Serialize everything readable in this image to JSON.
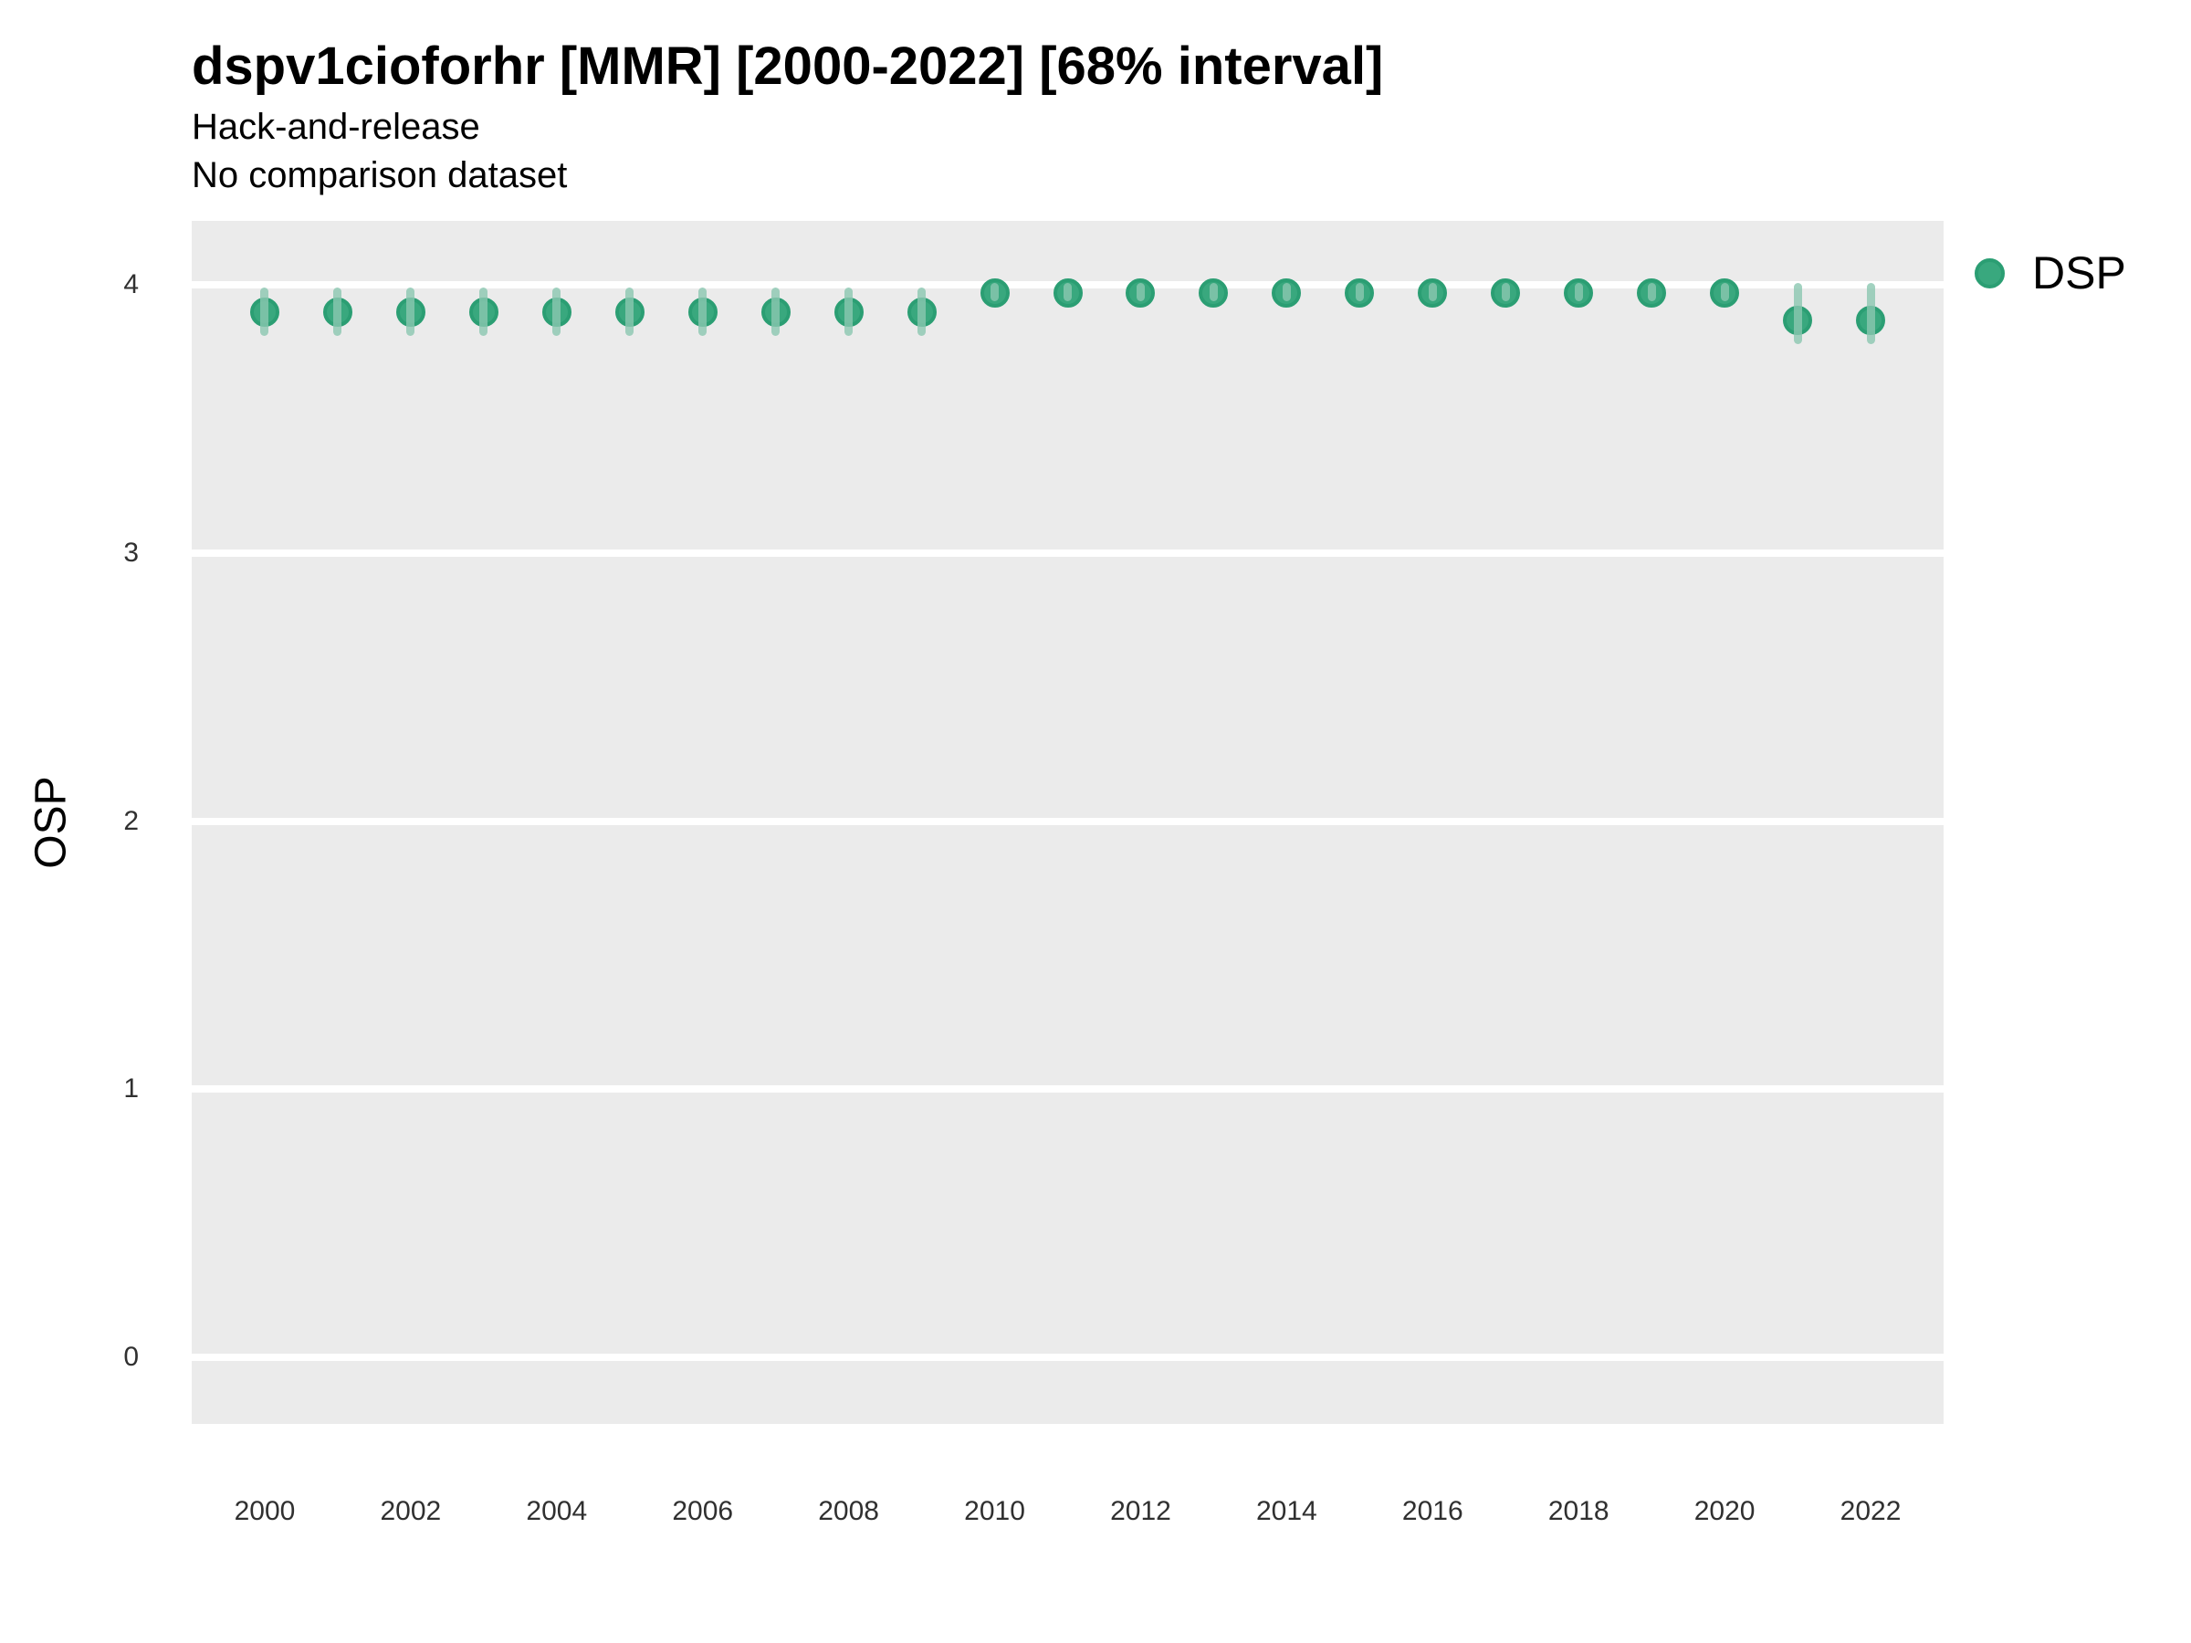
{
  "title": "dspv1cioforhr [MMR] [2000-2022] [68% interval]",
  "subtitle": {
    "line1": "Hack-and-release",
    "line2": "No comparison dataset"
  },
  "y_axis": {
    "label": "OSP",
    "ticks": [
      0,
      1,
      2,
      3,
      4
    ]
  },
  "x_axis": {
    "ticks": [
      2000,
      2002,
      2004,
      2006,
      2008,
      2010,
      2012,
      2014,
      2016,
      2018,
      2020,
      2022
    ]
  },
  "legend": {
    "items": [
      {
        "label": "DSP",
        "color": "#2BA578"
      }
    ]
  },
  "colors": {
    "panel_bg": "#EBEBEB",
    "gridline": "#FFFFFF",
    "point_fill": "#39A87E",
    "point_border": "#2B9E73",
    "interval_bar": "rgba(139,199,176,0.8)",
    "title_text": "#000000",
    "tick_text": "#303030"
  },
  "chart_data": {
    "type": "scatter",
    "title": "dspv1cioforhr [MMR] [2000-2022] [68% interval]",
    "subtitle": [
      "Hack-and-release",
      "No comparison dataset"
    ],
    "xlabel": "",
    "ylabel": "OSP",
    "xlim": [
      1999,
      2023
    ],
    "ylim": [
      -0.25,
      4.24
    ],
    "x_ticks": [
      2000,
      2002,
      2004,
      2006,
      2008,
      2010,
      2012,
      2014,
      2016,
      2018,
      2020,
      2022
    ],
    "y_ticks": [
      0,
      1,
      2,
      3,
      4
    ],
    "grid": "horizontal-major-only",
    "legend_position": "top-right-outside",
    "interval_level": "68%",
    "series": [
      {
        "name": "DSP",
        "points": [
          {
            "x": 2000,
            "y": 3.9,
            "lo": 3.81,
            "hi": 3.99
          },
          {
            "x": 2001,
            "y": 3.9,
            "lo": 3.81,
            "hi": 3.99
          },
          {
            "x": 2002,
            "y": 3.9,
            "lo": 3.81,
            "hi": 3.99
          },
          {
            "x": 2003,
            "y": 3.9,
            "lo": 3.81,
            "hi": 3.99
          },
          {
            "x": 2004,
            "y": 3.9,
            "lo": 3.81,
            "hi": 3.99
          },
          {
            "x": 2005,
            "y": 3.9,
            "lo": 3.81,
            "hi": 3.99
          },
          {
            "x": 2006,
            "y": 3.9,
            "lo": 3.81,
            "hi": 3.99
          },
          {
            "x": 2007,
            "y": 3.9,
            "lo": 3.81,
            "hi": 3.99
          },
          {
            "x": 2008,
            "y": 3.9,
            "lo": 3.81,
            "hi": 3.99
          },
          {
            "x": 2009,
            "y": 3.9,
            "lo": 3.81,
            "hi": 3.99
          },
          {
            "x": 2010,
            "y": 3.97,
            "lo": 3.94,
            "hi": 4.01
          },
          {
            "x": 2011,
            "y": 3.97,
            "lo": 3.94,
            "hi": 4.01
          },
          {
            "x": 2012,
            "y": 3.97,
            "lo": 3.94,
            "hi": 4.01
          },
          {
            "x": 2013,
            "y": 3.97,
            "lo": 3.94,
            "hi": 4.01
          },
          {
            "x": 2014,
            "y": 3.97,
            "lo": 3.94,
            "hi": 4.01
          },
          {
            "x": 2015,
            "y": 3.97,
            "lo": 3.94,
            "hi": 4.01
          },
          {
            "x": 2016,
            "y": 3.97,
            "lo": 3.94,
            "hi": 4.01
          },
          {
            "x": 2017,
            "y": 3.97,
            "lo": 3.94,
            "hi": 4.01
          },
          {
            "x": 2018,
            "y": 3.97,
            "lo": 3.94,
            "hi": 4.01
          },
          {
            "x": 2019,
            "y": 3.97,
            "lo": 3.94,
            "hi": 4.01
          },
          {
            "x": 2020,
            "y": 3.97,
            "lo": 3.94,
            "hi": 4.01
          },
          {
            "x": 2021,
            "y": 3.87,
            "lo": 3.78,
            "hi": 4.01
          },
          {
            "x": 2022,
            "y": 3.87,
            "lo": 3.78,
            "hi": 4.01
          }
        ]
      }
    ]
  }
}
